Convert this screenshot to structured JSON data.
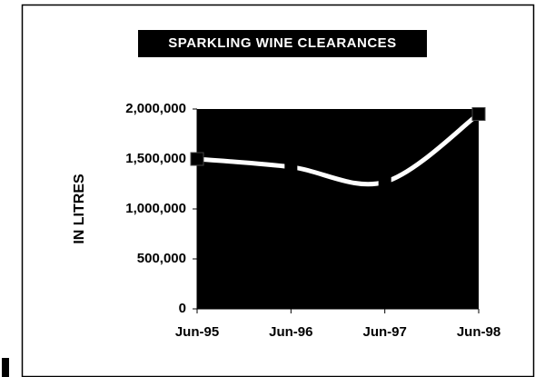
{
  "chart_data": {
    "type": "line",
    "title": "SPARKLING WINE CLEARANCES",
    "y_label": "IN LITRES",
    "categories": [
      "Jun-95",
      "Jun-96",
      "Jun-97",
      "Jun-98"
    ],
    "series": [
      {
        "name": "Clearances",
        "color": "#ffffff",
        "values": [
          1500000,
          1420000,
          1270000,
          1950000
        ]
      }
    ],
    "ylim": [
      0,
      2000000
    ],
    "yticks": [
      0,
      {
        "value": 500000,
        "label": "500,000"
      },
      {
        "value": 1000000,
        "label": "1,000,000"
      },
      {
        "value": 1500000,
        "label": "1,500,000"
      },
      {
        "value": 2000000,
        "label": "2,000,000"
      }
    ],
    "plot_background": "#000000"
  }
}
